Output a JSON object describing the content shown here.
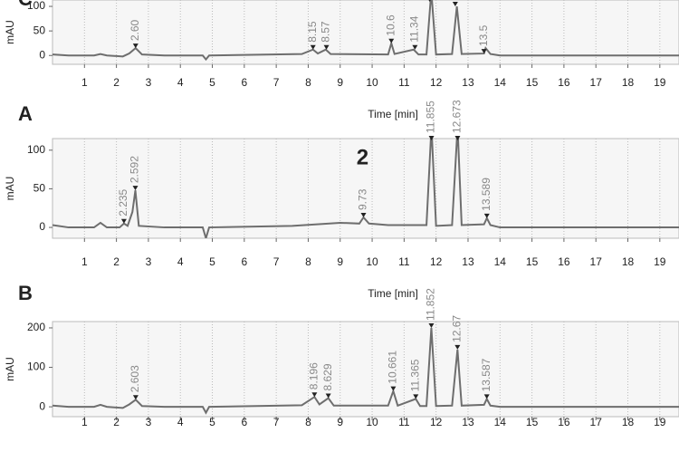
{
  "chart_data": [
    {
      "type": "line",
      "panel": "A",
      "x_label": "Time [min]",
      "y_label": "mAU",
      "color": "#6e6e6e",
      "x": [
        0,
        0.5,
        1.3,
        1.5,
        1.7,
        2.2,
        2.4,
        2.6,
        2.8,
        3.5,
        4.7,
        4.8,
        4.9,
        7.8,
        8.15,
        8.3,
        8.55,
        8.7,
        10.5,
        10.6,
        10.7,
        11.3,
        11.45,
        11.7,
        11.85,
        12.0,
        12.5,
        12.65,
        12.8,
        13.5,
        13.55,
        13.7,
        14,
        19.6
      ],
      "values": [
        2,
        0,
        0,
        3,
        0,
        -2,
        4,
        15,
        2,
        0,
        0,
        -8,
        0,
        3,
        12,
        4,
        12,
        3,
        2,
        25,
        3,
        12,
        2,
        2,
        130,
        2,
        3,
        100,
        3,
        4,
        15,
        3,
        0,
        0
      ],
      "peaks": [
        {
          "value": 2.6,
          "label": "2.60"
        },
        8.15,
        8.57,
        10.6,
        11.34,
        11.8,
        12.6,
        13.5
      ],
      "xlim": [
        0,
        19.6
      ],
      "ylim": [
        -18,
        113
      ],
      "xticks": [
        1,
        2,
        3,
        4,
        5,
        6,
        7,
        8,
        9,
        10,
        11,
        12,
        13,
        14,
        15,
        16,
        17,
        18,
        19
      ],
      "yticks": [
        0,
        50,
        100
      ],
      "grid": true
    },
    {
      "type": "line",
      "panel": "B",
      "annotation": "2",
      "x_label": "Time [min]",
      "y_label": "mAU",
      "color": "#6e6e6e",
      "x": [
        0,
        0.5,
        1.3,
        1.5,
        1.7,
        2.1,
        2.235,
        2.35,
        2.5,
        2.592,
        2.7,
        3.5,
        4.7,
        4.8,
        4.9,
        7.5,
        9.0,
        9.6,
        9.73,
        9.9,
        10.5,
        11.7,
        11.855,
        12.0,
        12.5,
        12.673,
        12.8,
        13.5,
        13.589,
        13.7,
        14,
        19.6
      ],
      "values": [
        3,
        0,
        0,
        6,
        0,
        0,
        5,
        2,
        20,
        48,
        2,
        0,
        0,
        -14,
        0,
        2,
        6,
        5,
        13,
        5,
        3,
        3,
        130,
        2,
        3,
        130,
        3,
        4,
        12,
        3,
        0,
        0
      ],
      "peaks": [
        2.235,
        2.592,
        9.73,
        11.855,
        12.673,
        13.589
      ],
      "xlim": [
        0,
        19.6
      ],
      "ylim": [
        -14,
        115
      ],
      "xticks": [
        1,
        2,
        3,
        4,
        5,
        6,
        7,
        8,
        9,
        10,
        11,
        12,
        13,
        14,
        15,
        16,
        17,
        18,
        19
      ],
      "yticks": [
        0,
        50,
        100
      ],
      "grid": true
    },
    {
      "type": "line",
      "panel": "C",
      "y_label": "mAU",
      "color": "#6e6e6e",
      "x": [
        0,
        0.5,
        1.3,
        1.5,
        1.7,
        2.2,
        2.4,
        2.603,
        2.8,
        3.5,
        4.7,
        4.8,
        4.9,
        7.8,
        8.196,
        8.35,
        8.629,
        8.8,
        10.5,
        10.661,
        10.8,
        11.365,
        11.5,
        11.7,
        11.852,
        12.0,
        12.5,
        12.67,
        12.8,
        13.5,
        13.587,
        13.7,
        14,
        19.6
      ],
      "values": [
        3,
        0,
        0,
        5,
        0,
        -3,
        6,
        18,
        2,
        0,
        0,
        -15,
        0,
        4,
        25,
        6,
        22,
        3,
        3,
        40,
        3,
        20,
        2,
        2,
        200,
        2,
        3,
        145,
        3,
        5,
        20,
        3,
        0,
        0
      ],
      "peaks": [
        2.603,
        8.196,
        8.629,
        10.661,
        11.365,
        11.852,
        12.67,
        13.587
      ],
      "xlim": [
        0,
        19.6
      ],
      "ylim": [
        -25,
        216
      ],
      "xticks": [
        1,
        2,
        3,
        4,
        5,
        6,
        7,
        8,
        9,
        10,
        11,
        12,
        13,
        14,
        15,
        16,
        17,
        18,
        19
      ],
      "yticks": [
        0,
        100,
        200
      ],
      "grid": true
    }
  ]
}
